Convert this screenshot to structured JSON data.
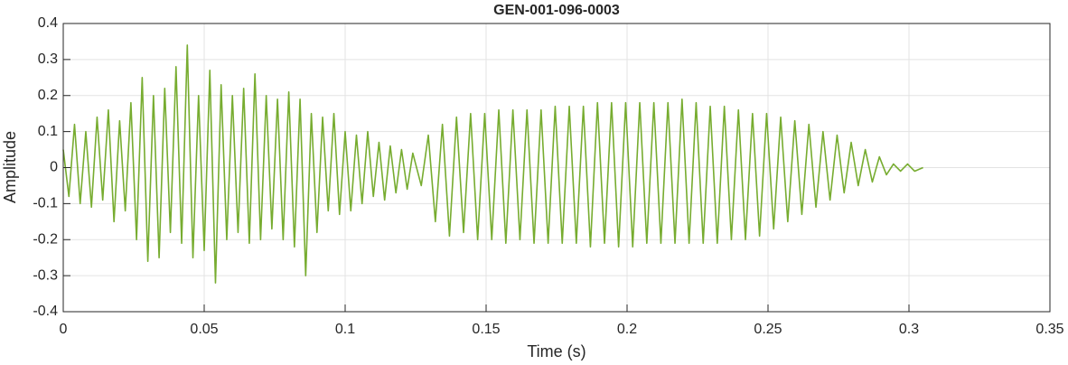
{
  "chart_data": {
    "type": "line",
    "title": "GEN-001-096-0003",
    "x_label": "Time (s)",
    "y_label": "Amplitude",
    "color": "#77ac30",
    "grid": true,
    "xlim": [
      0,
      0.35
    ],
    "xticks": [
      0,
      0.05,
      0.1,
      0.15,
      0.2,
      0.25,
      0.3,
      0.35
    ],
    "ylim": [
      -0.4,
      0.4
    ],
    "yticks": [
      -0.4,
      -0.3,
      -0.2,
      -0.1,
      0,
      0.1,
      0.2,
      0.3,
      0.4
    ],
    "x": [
      0,
      0.002,
      0.004,
      0.006,
      0.008,
      0.01,
      0.012,
      0.014,
      0.016,
      0.018,
      0.02,
      0.022,
      0.024,
      0.026,
      0.028,
      0.03,
      0.032,
      0.034,
      0.036,
      0.038,
      0.04,
      0.042,
      0.044,
      0.046,
      0.048,
      0.05,
      0.052,
      0.054,
      0.056,
      0.058,
      0.06,
      0.062,
      0.064,
      0.066,
      0.068,
      0.07,
      0.072,
      0.074,
      0.076,
      0.078,
      0.08,
      0.082,
      0.084,
      0.086,
      0.088,
      0.09,
      0.092,
      0.094,
      0.096,
      0.098,
      0.1,
      0.102,
      0.104,
      0.106,
      0.108,
      0.11,
      0.112,
      0.114,
      0.116,
      0.118,
      0.12,
      0.122,
      0.124,
      0.127,
      0.1295,
      0.132,
      0.1345,
      0.137,
      0.1395,
      0.142,
      0.1445,
      0.147,
      0.1495,
      0.152,
      0.1545,
      0.157,
      0.1595,
      0.162,
      0.1645,
      0.167,
      0.1695,
      0.172,
      0.1745,
      0.177,
      0.1795,
      0.182,
      0.1845,
      0.187,
      0.1895,
      0.192,
      0.1945,
      0.197,
      0.1995,
      0.202,
      0.2045,
      0.207,
      0.2095,
      0.212,
      0.2145,
      0.217,
      0.2195,
      0.222,
      0.2245,
      0.227,
      0.2295,
      0.232,
      0.2345,
      0.237,
      0.2395,
      0.242,
      0.2445,
      0.247,
      0.2495,
      0.252,
      0.2545,
      0.257,
      0.2595,
      0.262,
      0.2645,
      0.267,
      0.2695,
      0.272,
      0.2745,
      0.277,
      0.2795,
      0.282,
      0.2845,
      0.287,
      0.2895,
      0.292,
      0.2945,
      0.297,
      0.2995,
      0.302,
      0.305
    ],
    "values": [
      0.05,
      -0.08,
      0.12,
      -0.1,
      0.1,
      -0.11,
      0.14,
      -0.09,
      0.16,
      -0.15,
      0.13,
      -0.12,
      0.18,
      -0.2,
      0.25,
      -0.26,
      0.2,
      -0.25,
      0.22,
      -0.18,
      0.28,
      -0.21,
      0.34,
      -0.25,
      0.2,
      -0.23,
      0.27,
      -0.32,
      0.23,
      -0.2,
      0.2,
      -0.18,
      0.22,
      -0.21,
      0.26,
      -0.2,
      0.2,
      -0.17,
      0.19,
      -0.2,
      0.21,
      -0.22,
      0.19,
      -0.3,
      0.15,
      -0.18,
      0.14,
      -0.12,
      0.15,
      -0.13,
      0.1,
      -0.12,
      0.09,
      -0.1,
      0.1,
      -0.08,
      0.07,
      -0.09,
      0.06,
      -0.07,
      0.05,
      -0.06,
      0.04,
      -0.05,
      0.09,
      -0.15,
      0.12,
      -0.19,
      0.14,
      -0.18,
      0.15,
      -0.2,
      0.15,
      -0.2,
      0.16,
      -0.21,
      0.16,
      -0.2,
      0.16,
      -0.21,
      0.16,
      -0.21,
      0.17,
      -0.21,
      0.17,
      -0.21,
      0.17,
      -0.22,
      0.18,
      -0.21,
      0.18,
      -0.22,
      0.18,
      -0.22,
      0.18,
      -0.21,
      0.18,
      -0.21,
      0.18,
      -0.21,
      0.19,
      -0.21,
      0.18,
      -0.21,
      0.17,
      -0.21,
      0.17,
      -0.2,
      0.16,
      -0.2,
      0.15,
      -0.19,
      0.15,
      -0.17,
      0.14,
      -0.15,
      0.13,
      -0.13,
      0.12,
      -0.11,
      0.1,
      -0.09,
      0.09,
      -0.07,
      0.07,
      -0.05,
      0.05,
      -0.04,
      0.03,
      -0.02,
      0.01,
      -0.01,
      0.01,
      -0.01,
      0
    ]
  }
}
